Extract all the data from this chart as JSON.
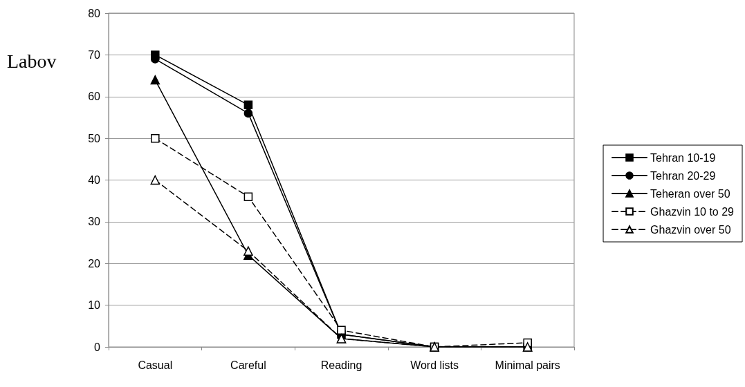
{
  "chart_data": {
    "type": "line",
    "ylabel": "Labov",
    "categories": [
      "Casual",
      "Careful",
      "Reading",
      "Word lists",
      "Minimal pairs"
    ],
    "series": [
      {
        "name": "Tehran 10-19",
        "color": "#000000",
        "marker": "square",
        "line_style": "solid",
        "values": [
          70,
          58,
          3,
          0,
          0
        ]
      },
      {
        "name": "Tehran 20-29",
        "color": "#000000",
        "marker": "circle",
        "line_style": "solid",
        "values": [
          69,
          56,
          3,
          0,
          0
        ]
      },
      {
        "name": "Teheran over 50",
        "color": "#000000",
        "marker": "triangle",
        "line_style": "solid",
        "values": [
          64,
          22,
          2,
          0,
          0
        ]
      },
      {
        "name": "Ghazvin 10 to 29",
        "color": "#000000",
        "marker": "square",
        "line_style": "dashed",
        "values": [
          50,
          36,
          4,
          0,
          1
        ]
      },
      {
        "name": "Ghazvin over 50",
        "color": "#000000",
        "marker": "triangle",
        "line_style": "dashed",
        "values": [
          40,
          23,
          2,
          0,
          0
        ]
      }
    ],
    "ylim": [
      0,
      80
    ],
    "yticks": [
      0,
      10,
      20,
      30,
      40,
      50,
      60,
      70,
      80
    ],
    "grid": "y",
    "legend": "right"
  }
}
